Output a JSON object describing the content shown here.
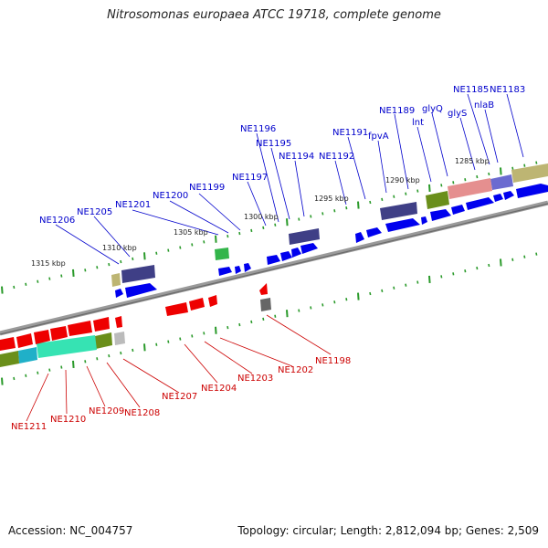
{
  "title": "Nitrosomonas europaea ATCC 19718, complete genome",
  "footer": {
    "accession": "Accession: NC_004757",
    "summary": "Topology: circular; Length: 2,812,094 bp; Genes: 2,509"
  },
  "colors": {
    "forward_label": "#0000cc",
    "reverse_label": "#cc0000",
    "forward_gene": "#0000ee",
    "reverse_gene": "#ee0000",
    "backbone": "#888888",
    "tick": "#2a9a2a"
  },
  "scale_labels": [
    "1285 kbp",
    "1290 kbp",
    "1295 kbp",
    "1300 kbp",
    "1305 kbp",
    "1310 kbp",
    "1315 kbp"
  ],
  "forward_genes": [
    "NE1183",
    "nlaB",
    "NE1185",
    "glyS",
    "glyQ",
    "lnt",
    "NE1189",
    "fpvA",
    "NE1191",
    "NE1192",
    "NE1194",
    "NE1195",
    "NE1196",
    "NE1197",
    "NE1199",
    "NE1200",
    "NE1201",
    "NE1205",
    "NE1206"
  ],
  "reverse_genes": [
    "NE1198",
    "NE1202",
    "NE1203",
    "NE1204",
    "NE1207",
    "NE1208",
    "NE1209",
    "NE1210",
    "NE1211"
  ]
}
